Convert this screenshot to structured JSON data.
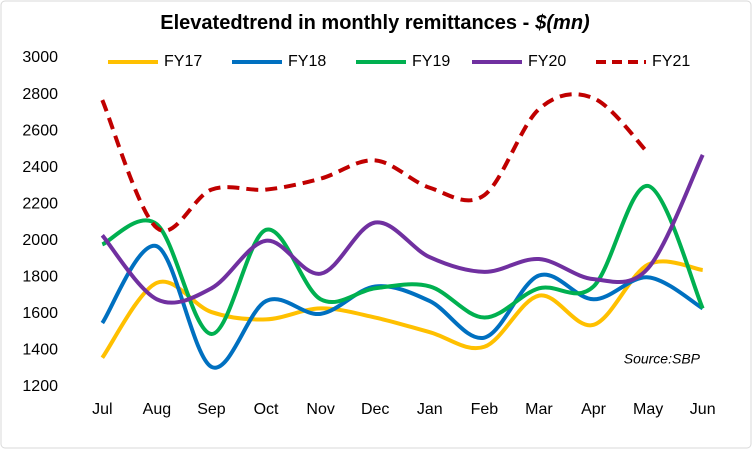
{
  "chart_data": {
    "type": "line",
    "title": "Elevatedtrend in monthly remittances -",
    "title_unit": "$(mn)",
    "annotation": "Source:SBP",
    "categories": [
      "Jul",
      "Aug",
      "Sep",
      "Oct",
      "Nov",
      "Dec",
      "Jan",
      "Feb",
      "Mar",
      "Apr",
      "May",
      "Jun"
    ],
    "series": [
      {
        "name": "FY17",
        "color": "#ffc000",
        "dashed": false,
        "values": [
          1360,
          1770,
          1610,
          1570,
          1630,
          1580,
          1500,
          1420,
          1700,
          1540,
          1870,
          1840
        ]
      },
      {
        "name": "FY18",
        "color": "#0070c0",
        "dashed": false,
        "values": [
          1550,
          1970,
          1310,
          1670,
          1600,
          1750,
          1670,
          1470,
          1810,
          1680,
          1800,
          1630
        ]
      },
      {
        "name": "FY19",
        "color": "#00b050",
        "dashed": false,
        "values": [
          1980,
          2090,
          1490,
          2060,
          1680,
          1740,
          1750,
          1580,
          1740,
          1750,
          2300,
          1630
        ]
      },
      {
        "name": "FY20",
        "color": "#7030a0",
        "dashed": false,
        "values": [
          2030,
          1680,
          1740,
          2000,
          1820,
          2100,
          1910,
          1830,
          1900,
          1790,
          1850,
          2470
        ]
      },
      {
        "name": "FY21",
        "color": "#c00000",
        "dashed": true,
        "values": [
          2770,
          2070,
          2280,
          2280,
          2340,
          2440,
          2290,
          2250,
          2720,
          2780,
          2480,
          null
        ]
      }
    ],
    "ylim": [
      1200,
      3000
    ],
    "yticks": [
      1200,
      1400,
      1600,
      1800,
      2000,
      2200,
      2400,
      2600,
      2800,
      3000
    ],
    "grid": false,
    "smooth": true,
    "legend": "top"
  }
}
